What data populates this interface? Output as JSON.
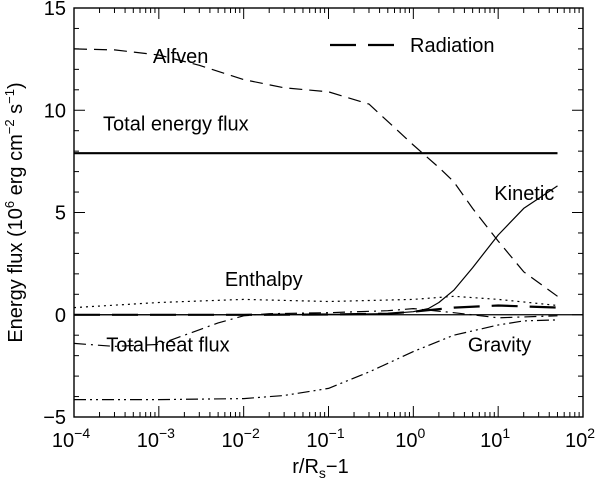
{
  "chart_data": {
    "type": "line",
    "x_scale": "log",
    "xlim": [
      0.0001,
      100
    ],
    "ylim": [
      -5,
      15
    ],
    "x_tick_values": [
      0.0001,
      0.001,
      0.01,
      0.1,
      1,
      10,
      100
    ],
    "x_tick_labels": [
      {
        "base": "10",
        "exp": "−4"
      },
      {
        "base": "10",
        "exp": "−3"
      },
      {
        "base": "10",
        "exp": "−2"
      },
      {
        "base": "10",
        "exp": "−1"
      },
      {
        "base": "10",
        "exp": "0"
      },
      {
        "base": "10",
        "exp": "1"
      },
      {
        "base": "10",
        "exp": "2"
      }
    ],
    "y_tick_values": [
      -5,
      0,
      5,
      10,
      15
    ],
    "y_tick_labels": [
      "−5",
      "0",
      "5",
      "10",
      "15"
    ],
    "xlabel": {
      "main": "r/R",
      "sub": "s",
      "tail": "−1"
    },
    "ylabel": {
      "p1": "Energy flux (10",
      "e1": "6",
      "p2": " erg cm",
      "e2": "−2",
      "p3": " s",
      "e3": "−1",
      "p4": ")"
    },
    "grid": false,
    "zero_line": true,
    "legend": {
      "position": "top-right",
      "entries": [
        {
          "label": "Radiation",
          "series": "Radiation"
        }
      ]
    },
    "series": [
      {
        "name": "Total energy flux",
        "style": "solid",
        "width": 2.2,
        "x": [
          0.0001,
          50
        ],
        "y": [
          7.9,
          7.9
        ]
      },
      {
        "name": "Alfven",
        "style": "dashed",
        "width": 1.2,
        "x": [
          0.0001,
          0.0003,
          0.001,
          0.003,
          0.01,
          0.03,
          0.1,
          0.3,
          1,
          2,
          3,
          5,
          10,
          20,
          50
        ],
        "y": [
          13,
          12.95,
          12.7,
          12.2,
          11.5,
          11.1,
          10.9,
          10.3,
          8.3,
          7.2,
          6.5,
          5.2,
          3.6,
          2.1,
          0.9
        ]
      },
      {
        "name": "Kinetic",
        "style": "solid",
        "width": 1.2,
        "x": [
          0.0001,
          0.01,
          0.1,
          0.5,
          1,
          1.5,
          2,
          3,
          5,
          10,
          20,
          50
        ],
        "y": [
          0,
          0,
          0.02,
          0.05,
          0.15,
          0.3,
          0.6,
          1.2,
          2.3,
          3.9,
          5.2,
          6.3
        ]
      },
      {
        "name": "Enthalpy",
        "style": "dotted",
        "width": 1.2,
        "x": [
          0.0001,
          0.001,
          0.01,
          0.1,
          1,
          3,
          10,
          30,
          50
        ],
        "y": [
          0.35,
          0.6,
          0.75,
          0.65,
          0.75,
          0.9,
          0.75,
          0.55,
          0.45
        ]
      },
      {
        "name": "Radiation",
        "style": "longdash",
        "width": 2.2,
        "x": [
          0.0001,
          0.01,
          0.1,
          0.5,
          1,
          3,
          10,
          50
        ],
        "y": [
          0,
          0,
          0.01,
          0.05,
          0.15,
          0.35,
          0.45,
          0.35
        ]
      },
      {
        "name": "Total heat flux",
        "style": "dashdot",
        "width": 1.2,
        "x": [
          0.0001,
          0.0003,
          0.001,
          0.002,
          0.005,
          0.01,
          0.02,
          0.1,
          0.5,
          1,
          3,
          10,
          50
        ],
        "y": [
          -1.4,
          -1.55,
          -1.45,
          -1.0,
          -0.4,
          -0.05,
          0.05,
          0.1,
          0.2,
          0.3,
          0.1,
          -0.15,
          -0.05
        ]
      },
      {
        "name": "Gravity",
        "style": "dashdotdot",
        "width": 1.2,
        "x": [
          0.0001,
          0.001,
          0.01,
          0.03,
          0.1,
          0.3,
          1,
          3,
          10,
          20,
          50
        ],
        "y": [
          -4.15,
          -4.15,
          -4.1,
          -3.95,
          -3.6,
          -2.8,
          -1.8,
          -1.0,
          -0.5,
          -0.3,
          -0.25
        ]
      }
    ],
    "annotations": [
      {
        "text": "Alfven",
        "x": 0.00085,
        "y": 12.3
      },
      {
        "text": "Total energy flux",
        "x": 0.00022,
        "y": 9.0
      },
      {
        "text": "Kinetic",
        "x": 9,
        "y": 5.6
      },
      {
        "text": "Enthalpy",
        "x": 0.006,
        "y": 1.4
      },
      {
        "text": "Total heat flux",
        "x": 0.00024,
        "y": -1.8
      },
      {
        "text": "Gravity",
        "x": 4.4,
        "y": -1.8
      }
    ]
  }
}
